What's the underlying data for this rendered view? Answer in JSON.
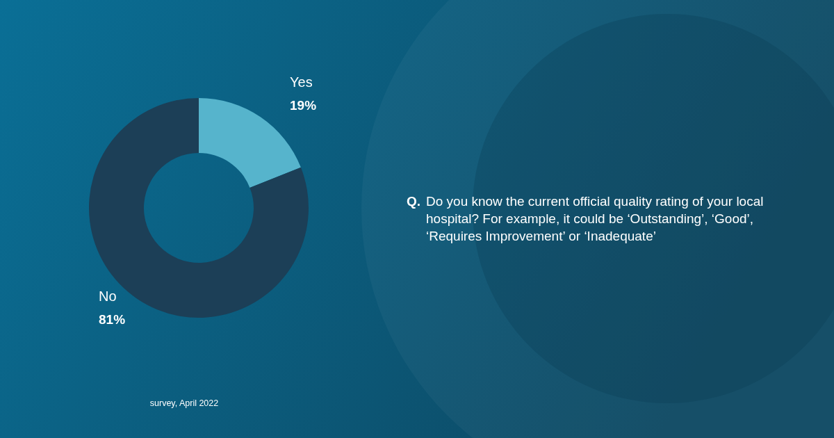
{
  "chart_data": {
    "type": "donut",
    "title": "Do you know the current official quality rating of your local hospital? For example, it could be ‘Outstanding’, ‘Good’, ‘Requires Improvement’ or ‘Inadequate’",
    "annotations": [
      "Q.",
      "survey, April 2022"
    ],
    "categories": [
      "Yes",
      "No"
    ],
    "values": [
      19,
      81
    ],
    "value_labels": [
      "19%",
      "81%"
    ],
    "colors": [
      "#56b4cc",
      "#1c3f57"
    ]
  }
}
